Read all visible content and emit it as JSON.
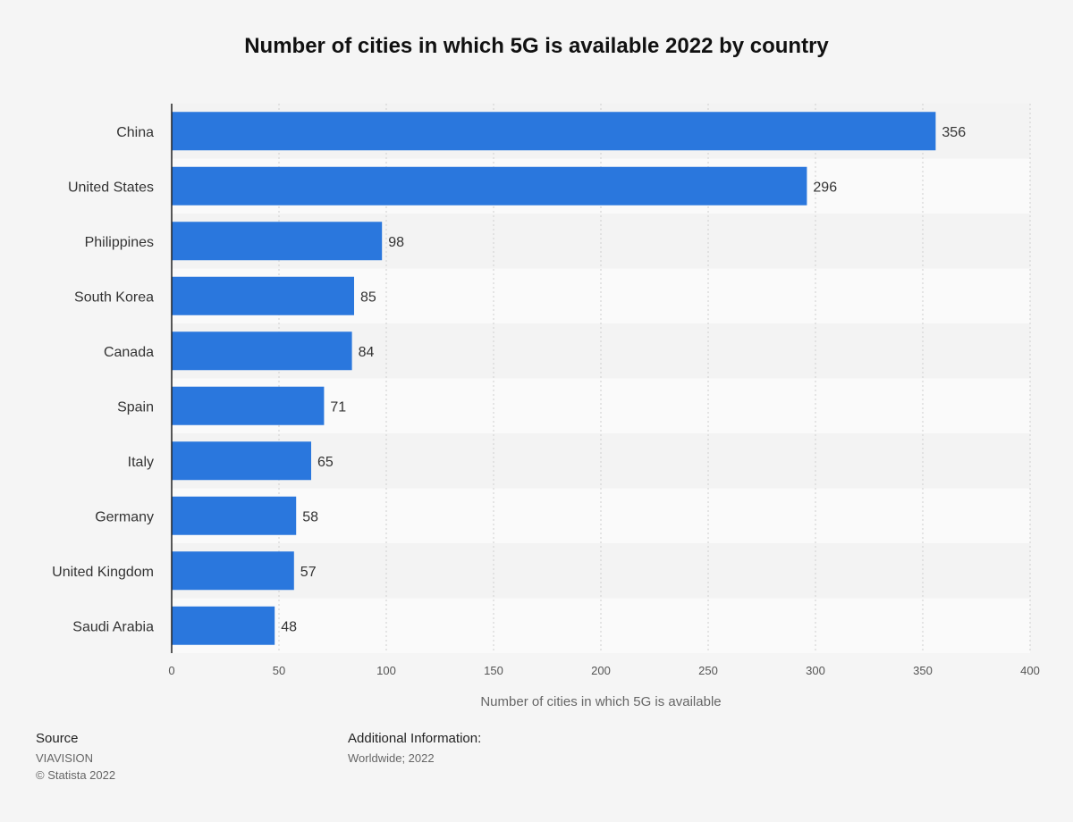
{
  "chart_data": {
    "type": "bar",
    "orientation": "horizontal",
    "title": "Number of cities in which 5G is available 2022 by country",
    "categories": [
      "China",
      "United States",
      "Philippines",
      "South Korea",
      "Canada",
      "Spain",
      "Italy",
      "Germany",
      "United Kingdom",
      "Saudi Arabia"
    ],
    "values": [
      356,
      296,
      98,
      85,
      84,
      71,
      65,
      58,
      57,
      48
    ],
    "xlabel": "Number of cities in which 5G is available",
    "ylabel": "",
    "xlim": [
      0,
      400
    ],
    "xticks": [
      0,
      50,
      100,
      150,
      200,
      250,
      300,
      350,
      400
    ],
    "grid": true,
    "bar_color": "#2a77dd"
  },
  "footer": {
    "source_heading": "Source",
    "source_name": "VIAVISION",
    "copyright": "© Statista 2022",
    "info_heading": "Additional Information:",
    "info_text": "Worldwide; 2022"
  }
}
